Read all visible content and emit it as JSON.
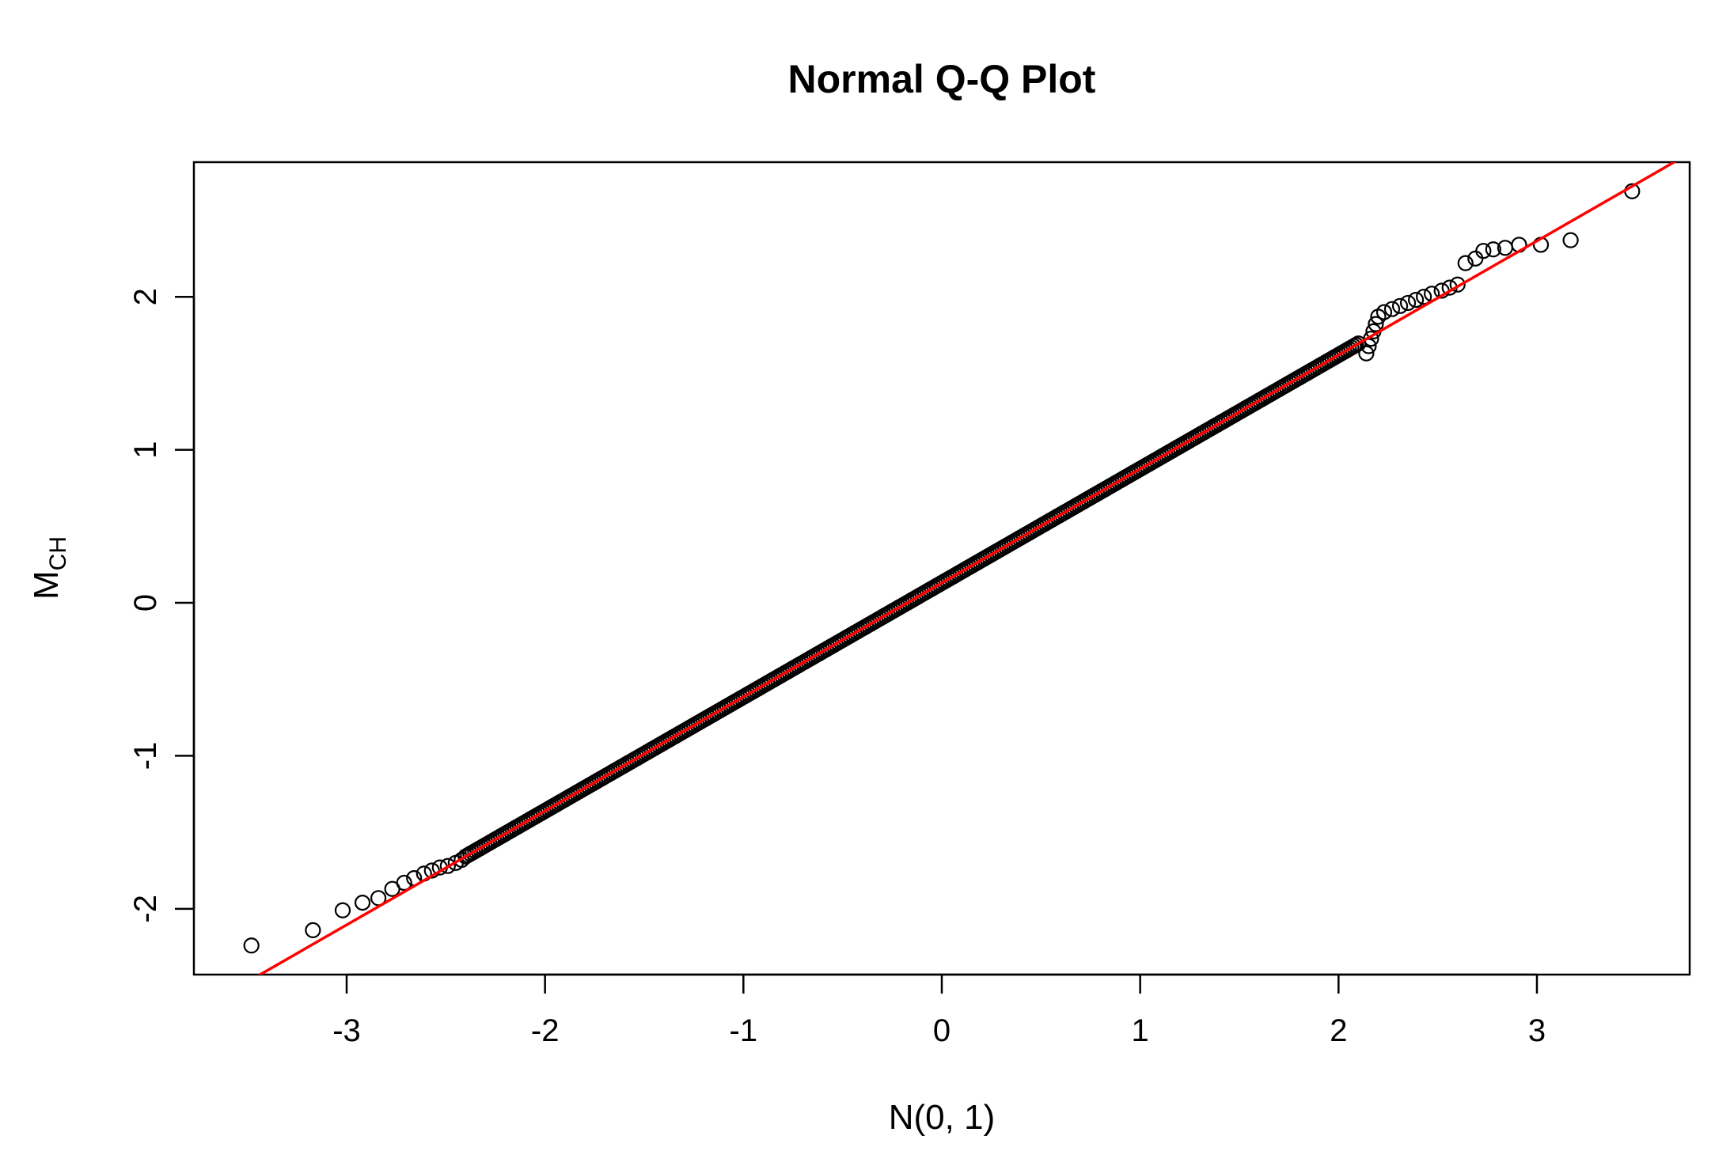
{
  "chart_data": {
    "type": "scatter",
    "title": "Normal Q-Q Plot",
    "xlabel": "N(0, 1)",
    "ylabel": {
      "main": "M",
      "sub": "CH"
    },
    "xlim": [
      -3.77,
      3.77
    ],
    "ylim": [
      -2.43,
      2.88
    ],
    "xticks": [
      -3,
      -2,
      -1,
      0,
      1,
      2,
      3
    ],
    "yticks": [
      -2,
      -1,
      0,
      1,
      2
    ],
    "grid": false,
    "legend": "none",
    "point_color": "#000000",
    "line_color": "#ff0000",
    "reference_line": {
      "slope": 0.745,
      "intercept": 0.13
    },
    "dense_segments": [
      {
        "x_start": -2.4,
        "x_end": 2.1,
        "slope": 0.745,
        "intercept": 0.13,
        "count": 380
      },
      {
        "x_start": 2.14,
        "x_end": 2.2,
        "slope": 4.0,
        "intercept": -6.93,
        "count": 6
      }
    ],
    "tail_points": [
      {
        "x": -3.48,
        "y": -2.24
      },
      {
        "x": -3.17,
        "y": -2.14
      },
      {
        "x": -3.02,
        "y": -2.01
      },
      {
        "x": -2.92,
        "y": -1.96
      },
      {
        "x": -2.84,
        "y": -1.93
      },
      {
        "x": -2.77,
        "y": -1.87
      },
      {
        "x": -2.71,
        "y": -1.83
      },
      {
        "x": -2.66,
        "y": -1.8
      },
      {
        "x": -2.61,
        "y": -1.77
      },
      {
        "x": -2.57,
        "y": -1.75
      },
      {
        "x": -2.53,
        "y": -1.73
      },
      {
        "x": -2.49,
        "y": -1.72
      },
      {
        "x": -2.45,
        "y": -1.7
      },
      {
        "x": -2.42,
        "y": -1.68
      },
      {
        "x": 2.23,
        "y": 1.9
      },
      {
        "x": 2.27,
        "y": 1.92
      },
      {
        "x": 2.31,
        "y": 1.94
      },
      {
        "x": 2.35,
        "y": 1.96
      },
      {
        "x": 2.39,
        "y": 1.98
      },
      {
        "x": 2.43,
        "y": 2.0
      },
      {
        "x": 2.47,
        "y": 2.02
      },
      {
        "x": 2.52,
        "y": 2.04
      },
      {
        "x": 2.56,
        "y": 2.06
      },
      {
        "x": 2.6,
        "y": 2.08
      },
      {
        "x": 2.64,
        "y": 2.22
      },
      {
        "x": 2.69,
        "y": 2.25
      },
      {
        "x": 2.73,
        "y": 2.3
      },
      {
        "x": 2.78,
        "y": 2.31
      },
      {
        "x": 2.84,
        "y": 2.32
      },
      {
        "x": 2.91,
        "y": 2.34
      },
      {
        "x": 3.02,
        "y": 2.34
      },
      {
        "x": 3.17,
        "y": 2.37
      },
      {
        "x": 3.48,
        "y": 2.69
      }
    ]
  }
}
